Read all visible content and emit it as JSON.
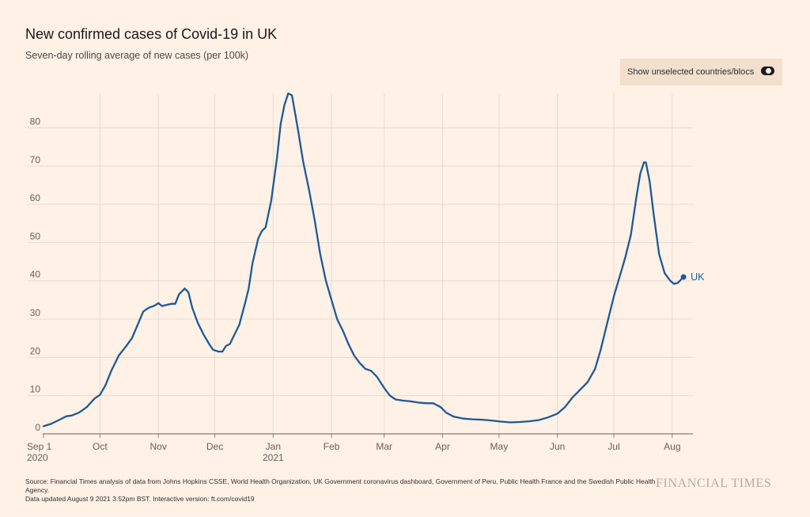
{
  "header": {
    "title": "New confirmed cases of Covid-19 in UK",
    "subtitle": "Seven-day rolling average of new cases (per 100k)"
  },
  "toggle": {
    "label": "Show unselected countries/blocs",
    "icon": "toggle-switch-icon",
    "state": "on"
  },
  "chart_data": {
    "type": "line",
    "ylim": [
      0,
      89
    ],
    "grid": true,
    "y_ticks": [
      0,
      10,
      20,
      30,
      40,
      50,
      60,
      70,
      80
    ],
    "x_ticks": [
      {
        "date": "2020-09-01",
        "label": "Sep 1",
        "sub": "2020"
      },
      {
        "date": "2020-10-01",
        "label": "Oct",
        "sub": ""
      },
      {
        "date": "2020-11-01",
        "label": "Nov",
        "sub": ""
      },
      {
        "date": "2020-12-01",
        "label": "Dec",
        "sub": ""
      },
      {
        "date": "2021-01-01",
        "label": "Jan",
        "sub": "2021"
      },
      {
        "date": "2021-02-01",
        "label": "Feb",
        "sub": ""
      },
      {
        "date": "2021-03-01",
        "label": "Mar",
        "sub": ""
      },
      {
        "date": "2021-04-01",
        "label": "Apr",
        "sub": ""
      },
      {
        "date": "2021-05-01",
        "label": "May",
        "sub": ""
      },
      {
        "date": "2021-06-01",
        "label": "Jun",
        "sub": ""
      },
      {
        "date": "2021-07-01",
        "label": "Jul",
        "sub": ""
      },
      {
        "date": "2021-08-01",
        "label": "Aug",
        "sub": ""
      }
    ],
    "series": [
      {
        "name": "UK",
        "color": "#1d5a96",
        "points": [
          [
            "2020-09-01",
            2.0
          ],
          [
            "2020-09-05",
            2.6
          ],
          [
            "2020-09-10",
            3.8
          ],
          [
            "2020-09-13",
            4.6
          ],
          [
            "2020-09-16",
            4.8
          ],
          [
            "2020-09-20",
            5.6
          ],
          [
            "2020-09-24",
            7.0
          ],
          [
            "2020-09-28",
            9.2
          ],
          [
            "2020-10-01",
            10.2
          ],
          [
            "2020-10-04",
            12.8
          ],
          [
            "2020-10-07",
            16.5
          ],
          [
            "2020-10-11",
            20.5
          ],
          [
            "2020-10-15",
            23.0
          ],
          [
            "2020-10-18",
            25.0
          ],
          [
            "2020-10-21",
            28.5
          ],
          [
            "2020-10-24",
            32.0
          ],
          [
            "2020-10-27",
            33.0
          ],
          [
            "2020-10-30",
            33.5
          ],
          [
            "2020-11-01",
            34.2
          ],
          [
            "2020-11-03",
            33.4
          ],
          [
            "2020-11-06",
            33.8
          ],
          [
            "2020-11-08",
            34.0
          ],
          [
            "2020-11-10",
            34.0
          ],
          [
            "2020-11-12",
            36.5
          ],
          [
            "2020-11-15",
            38.0
          ],
          [
            "2020-11-17",
            37.0
          ],
          [
            "2020-11-19",
            33.0
          ],
          [
            "2020-11-22",
            29.0
          ],
          [
            "2020-11-25",
            26.0
          ],
          [
            "2020-11-28",
            23.5
          ],
          [
            "2020-11-30",
            22.0
          ],
          [
            "2020-12-03",
            21.5
          ],
          [
            "2020-12-05",
            21.5
          ],
          [
            "2020-12-07",
            23.0
          ],
          [
            "2020-12-09",
            23.5
          ],
          [
            "2020-12-12",
            26.5
          ],
          [
            "2020-12-14",
            28.5
          ],
          [
            "2020-12-17",
            34.0
          ],
          [
            "2020-12-19",
            38.0
          ],
          [
            "2020-12-21",
            44.5
          ],
          [
            "2020-12-24",
            51.0
          ],
          [
            "2020-12-26",
            53.0
          ],
          [
            "2020-12-28",
            54.0
          ],
          [
            "2020-12-31",
            61.0
          ],
          [
            "2021-01-03",
            72.0
          ],
          [
            "2021-01-05",
            81.0
          ],
          [
            "2021-01-07",
            86.0
          ],
          [
            "2021-01-09",
            89.0
          ],
          [
            "2021-01-11",
            88.5
          ],
          [
            "2021-01-14",
            80.0
          ],
          [
            "2021-01-17",
            71.0
          ],
          [
            "2021-01-20",
            64.0
          ],
          [
            "2021-01-23",
            56.0
          ],
          [
            "2021-01-26",
            47.0
          ],
          [
            "2021-01-29",
            40.0
          ],
          [
            "2021-02-01",
            35.0
          ],
          [
            "2021-02-04",
            30.0
          ],
          [
            "2021-02-07",
            27.0
          ],
          [
            "2021-02-10",
            23.5
          ],
          [
            "2021-02-13",
            20.5
          ],
          [
            "2021-02-16",
            18.5
          ],
          [
            "2021-02-19",
            17.0
          ],
          [
            "2021-02-22",
            16.5
          ],
          [
            "2021-02-25",
            15.0
          ],
          [
            "2021-03-01",
            12.0
          ],
          [
            "2021-03-04",
            10.0
          ],
          [
            "2021-03-07",
            9.0
          ],
          [
            "2021-03-11",
            8.7
          ],
          [
            "2021-03-15",
            8.5
          ],
          [
            "2021-03-19",
            8.2
          ],
          [
            "2021-03-23",
            8.0
          ],
          [
            "2021-03-27",
            8.0
          ],
          [
            "2021-03-31",
            7.0
          ],
          [
            "2021-04-03",
            5.5
          ],
          [
            "2021-04-07",
            4.5
          ],
          [
            "2021-04-12",
            4.0
          ],
          [
            "2021-04-17",
            3.8
          ],
          [
            "2021-04-22",
            3.7
          ],
          [
            "2021-04-27",
            3.5
          ],
          [
            "2021-05-02",
            3.2
          ],
          [
            "2021-05-07",
            3.0
          ],
          [
            "2021-05-12",
            3.1
          ],
          [
            "2021-05-17",
            3.3
          ],
          [
            "2021-05-22",
            3.6
          ],
          [
            "2021-05-27",
            4.3
          ],
          [
            "2021-06-01",
            5.3
          ],
          [
            "2021-06-05",
            7.0
          ],
          [
            "2021-06-09",
            9.5
          ],
          [
            "2021-06-13",
            11.5
          ],
          [
            "2021-06-17",
            13.5
          ],
          [
            "2021-06-21",
            17.0
          ],
          [
            "2021-06-24",
            22.0
          ],
          [
            "2021-06-27",
            28.0
          ],
          [
            "2021-07-01",
            36.0
          ],
          [
            "2021-07-04",
            41.0
          ],
          [
            "2021-07-07",
            46.0
          ],
          [
            "2021-07-10",
            52.0
          ],
          [
            "2021-07-13",
            62.0
          ],
          [
            "2021-07-15",
            68.0
          ],
          [
            "2021-07-17",
            71.0
          ],
          [
            "2021-07-18",
            71.0
          ],
          [
            "2021-07-20",
            66.0
          ],
          [
            "2021-07-22",
            58.0
          ],
          [
            "2021-07-25",
            47.0
          ],
          [
            "2021-07-28",
            42.0
          ],
          [
            "2021-07-31",
            40.0
          ],
          [
            "2021-08-02",
            39.2
          ],
          [
            "2021-08-04",
            39.5
          ],
          [
            "2021-08-06",
            40.5
          ],
          [
            "2021-08-07",
            41.0
          ]
        ]
      }
    ]
  },
  "footer": {
    "source": "Source: Financial Times analysis of data from Johns Hopkins CSSE, World Health Organization, UK Government coronavirus dashboard, Government of Peru, Public Health France and the Swedish Public Health Agency.",
    "updated": "Data updated August 9 2021 3.52pm BST. Interactive version: ft.com/covid19",
    "brand": "FINANCIAL TIMES"
  }
}
